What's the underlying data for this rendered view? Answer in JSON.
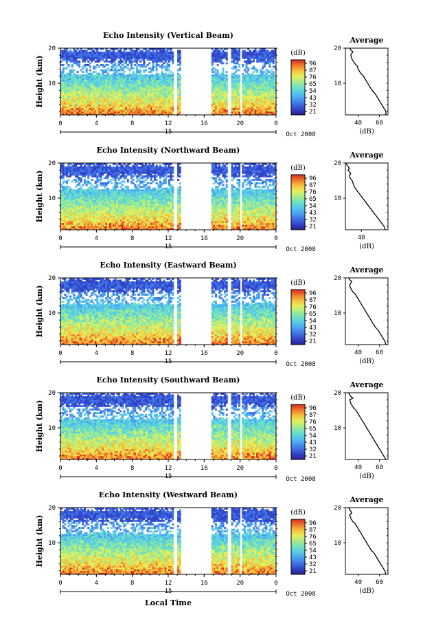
{
  "colors": {
    "scale": [
      "#2b1f8f",
      "#3345c8",
      "#3f73e6",
      "#4aa3f0",
      "#55c9ea",
      "#6fe0c0",
      "#a6ec8a",
      "#e3ee5c",
      "#f5c23c",
      "#f0792d",
      "#d52a1f"
    ],
    "gap": "#ffffff",
    "axis": "#000000"
  },
  "chart_data": [
    {
      "type": "heatmap",
      "title": "Echo Intensity (Vertical Beam)",
      "ylabel": "Height (km)",
      "xlabel": "",
      "x_ticks": [
        "0",
        "4",
        "8",
        "12",
        "16",
        "20",
        "0"
      ],
      "y_ticks": [
        "20",
        "10"
      ],
      "xlim": [
        0,
        24
      ],
      "ylim": [
        1,
        20
      ],
      "date_label": "15",
      "date_right": "Oct 2008",
      "gaps_hours": [
        [
          12.6,
          13.0
        ],
        [
          13.5,
          16.7
        ],
        [
          18.7,
          18.9
        ],
        [
          20.0,
          20.2
        ]
      ],
      "colorbar": {
        "unit": "(dB)",
        "labels": [
          "96",
          "87",
          "76",
          "65",
          "54",
          "43",
          "32",
          "21"
        ]
      },
      "profile": {
        "title": "Average",
        "xlabel": "(dB)",
        "x_ticks": [
          "40",
          "60"
        ],
        "y_ticks": [
          "20",
          "10"
        ],
        "xlim": [
          28,
          68
        ],
        "ylim": [
          1,
          20
        ],
        "x": [
          66,
          66,
          64,
          62,
          60,
          58,
          56,
          53,
          51,
          49,
          47,
          45,
          42,
          40,
          39,
          37,
          36,
          35,
          34,
          33,
          34,
          35,
          33,
          32
        ],
        "y": [
          1,
          2,
          3,
          4,
          5,
          6,
          7,
          8,
          9,
          10,
          11,
          12,
          13,
          14,
          15,
          15.5,
          16,
          16.5,
          17,
          18,
          18.5,
          19,
          19.5,
          20
        ]
      }
    },
    {
      "type": "heatmap",
      "title": "Echo Intensity (Northward Beam)",
      "ylabel": "Height (km)",
      "xlabel": "",
      "x_ticks": [
        "0",
        "4",
        "8",
        "12",
        "16",
        "20",
        "0"
      ],
      "y_ticks": [
        "20",
        "10"
      ],
      "xlim": [
        0,
        24
      ],
      "ylim": [
        1,
        20
      ],
      "date_label": "15",
      "date_right": "Oct 2008",
      "gaps_hours": [
        [
          12.6,
          13.0
        ],
        [
          13.5,
          16.7
        ],
        [
          18.7,
          18.9
        ],
        [
          20.0,
          20.2
        ]
      ],
      "colorbar": {
        "unit": "(dB)",
        "labels": [
          "96",
          "87",
          "76",
          "65",
          "54",
          "43",
          "32",
          "21"
        ]
      },
      "profile": {
        "title": "Average",
        "xlabel": "(dB)",
        "x_ticks": [
          "40"
        ],
        "y_ticks": [
          "20",
          "10"
        ],
        "xlim": [
          28,
          60
        ],
        "ylim": [
          1,
          20
        ],
        "x": [
          58,
          57,
          55,
          53,
          51,
          49,
          47,
          45,
          43,
          41,
          39,
          37,
          35,
          34,
          33,
          32,
          31,
          31,
          32,
          30,
          31,
          30,
          29,
          29
        ],
        "y": [
          1,
          2,
          3,
          4,
          5,
          6,
          7,
          8,
          9,
          10,
          11,
          12,
          13,
          14,
          15,
          15.5,
          16,
          16.5,
          17,
          18,
          18.5,
          19,
          19.5,
          20
        ]
      }
    },
    {
      "type": "heatmap",
      "title": "Echo Intensity (Eastward Beam)",
      "ylabel": "Height (km)",
      "xlabel": "",
      "x_ticks": [
        "0",
        "4",
        "8",
        "12",
        "16",
        "20",
        "0"
      ],
      "y_ticks": [
        "20",
        "10"
      ],
      "xlim": [
        0,
        24
      ],
      "ylim": [
        1,
        20
      ],
      "date_label": "15",
      "date_right": "Oct 2008",
      "gaps_hours": [
        [
          12.6,
          13.0
        ],
        [
          13.5,
          16.7
        ],
        [
          18.7,
          18.9
        ],
        [
          20.0,
          20.2
        ]
      ],
      "colorbar": {
        "unit": "(dB)",
        "labels": [
          "96",
          "87",
          "76",
          "65",
          "54",
          "43",
          "32",
          "21"
        ]
      },
      "profile": {
        "title": "Average",
        "xlabel": "(dB)",
        "x_ticks": [
          "40",
          "60"
        ],
        "y_ticks": [
          "20",
          "10"
        ],
        "xlim": [
          28,
          68
        ],
        "ylim": [
          1,
          20
        ],
        "x": [
          66,
          65,
          63,
          61,
          59,
          56,
          54,
          52,
          50,
          48,
          46,
          44,
          42,
          40,
          38,
          37,
          35,
          34,
          33,
          32,
          33,
          34,
          32,
          31
        ],
        "y": [
          1,
          2,
          3,
          4,
          5,
          6,
          7,
          8,
          9,
          10,
          11,
          12,
          13,
          14,
          15,
          15.5,
          16,
          16.5,
          17,
          18,
          18.5,
          19,
          19.5,
          20
        ]
      }
    },
    {
      "type": "heatmap",
      "title": "Echo Intensity (Southward Beam)",
      "ylabel": "Height (km)",
      "xlabel": "",
      "x_ticks": [
        "0",
        "4",
        "8",
        "12",
        "16",
        "20",
        "0"
      ],
      "y_ticks": [
        "20",
        "10"
      ],
      "xlim": [
        0,
        24
      ],
      "ylim": [
        1,
        20
      ],
      "date_label": "15",
      "date_right": "Oct 2008",
      "gaps_hours": [
        [
          12.6,
          13.0
        ],
        [
          13.5,
          16.7
        ],
        [
          18.7,
          18.9
        ],
        [
          20.0,
          20.2
        ]
      ],
      "colorbar": {
        "unit": "(dB)",
        "labels": [
          "96",
          "87",
          "76",
          "65",
          "54",
          "43",
          "32",
          "21"
        ]
      },
      "profile": {
        "title": "Average",
        "xlabel": "(dB)",
        "x_ticks": [
          "40",
          "60"
        ],
        "y_ticks": [
          "20",
          "10"
        ],
        "xlim": [
          28,
          68
        ],
        "ylim": [
          1,
          20
        ],
        "x": [
          66,
          64,
          62,
          60,
          58,
          56,
          54,
          52,
          50,
          48,
          46,
          44,
          42,
          40,
          38,
          36,
          35,
          34,
          33,
          32,
          35,
          33,
          32,
          31
        ],
        "y": [
          1,
          2,
          3,
          4,
          5,
          6,
          7,
          8,
          9,
          10,
          11,
          12,
          13,
          14,
          15,
          15.5,
          16,
          16.5,
          17,
          18,
          18.5,
          19,
          19.5,
          20
        ]
      }
    },
    {
      "type": "heatmap",
      "title": "Echo Intensity (Westward Beam)",
      "ylabel": "Height (km)",
      "xlabel": "Local Time",
      "x_ticks": [
        "0",
        "4",
        "8",
        "12",
        "16",
        "20",
        "0"
      ],
      "y_ticks": [
        "20",
        "10"
      ],
      "xlim": [
        0,
        24
      ],
      "ylim": [
        1,
        20
      ],
      "date_label": "15",
      "date_right": "Oct 2008",
      "gaps_hours": [
        [
          12.6,
          13.0
        ],
        [
          13.5,
          16.7
        ],
        [
          18.7,
          18.9
        ],
        [
          20.0,
          20.2
        ]
      ],
      "colorbar": {
        "unit": "(dB)",
        "labels": [
          "96",
          "87",
          "76",
          "65",
          "54",
          "43",
          "32",
          "21"
        ]
      },
      "profile": {
        "title": "Average",
        "xlabel": "(dB)",
        "x_ticks": [
          "40",
          "60"
        ],
        "y_ticks": [
          "20",
          "10"
        ],
        "xlim": [
          28,
          68
        ],
        "ylim": [
          1,
          20
        ],
        "x": [
          66,
          65,
          63,
          61,
          59,
          57,
          55,
          52,
          50,
          48,
          46,
          44,
          42,
          40,
          38,
          37,
          35,
          34,
          33,
          32,
          34,
          33,
          32,
          31
        ],
        "y": [
          1,
          2,
          3,
          4,
          5,
          6,
          7,
          8,
          9,
          10,
          11,
          12,
          13,
          14,
          15,
          15.5,
          16,
          16.5,
          17,
          18,
          18.5,
          19,
          19.5,
          20
        ]
      }
    }
  ]
}
